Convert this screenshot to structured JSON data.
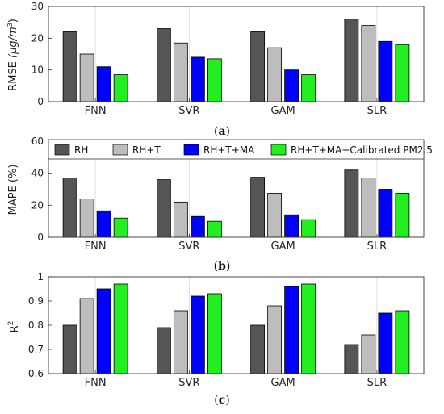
{
  "chart_data": [
    {
      "type": "bar",
      "panel_label": "a",
      "ylabel": "RMSE (μg/m³)",
      "ylabel_main": "RMSE",
      "ylabel_unit": "(μg/m",
      "ylabel_sup": "3",
      "ylabel_close": ")",
      "ylim": [
        0,
        30
      ],
      "yticks": [
        "0",
        "10",
        "20",
        "30"
      ],
      "ytick_values": [
        0,
        10,
        20,
        30
      ],
      "grid": "vertical",
      "categories": [
        "FNN",
        "SVR",
        "GAM",
        "SLR"
      ],
      "series": [
        {
          "name": "RH",
          "color": "#555555",
          "values": [
            22,
            23,
            22,
            26
          ]
        },
        {
          "name": "RH+T",
          "color": "#bdbdbd",
          "values": [
            15,
            18.5,
            17,
            24
          ]
        },
        {
          "name": "RH+T+MA",
          "color": "#0000ff",
          "values": [
            11,
            14,
            10,
            19
          ]
        },
        {
          "name": "RH+T+MA+Calibrated PM2.5",
          "color": "#22ee22",
          "values": [
            8.5,
            13.5,
            8.5,
            18
          ]
        }
      ]
    },
    {
      "type": "bar",
      "panel_label": "b",
      "ylabel": "MAPE (%)",
      "ylabel_main": "MAPE (%)",
      "ylim": [
        0,
        60
      ],
      "yticks": [
        "0",
        "20",
        "40",
        "60"
      ],
      "ytick_values": [
        0,
        20,
        40,
        60
      ],
      "grid": "vertical",
      "legend": "top",
      "categories": [
        "FNN",
        "SVR",
        "GAM",
        "SLR"
      ],
      "series": [
        {
          "name": "RH",
          "color": "#555555",
          "values": [
            37,
            36,
            37.5,
            42
          ]
        },
        {
          "name": "RH+T",
          "color": "#bdbdbd",
          "values": [
            24,
            22,
            27.5,
            37
          ]
        },
        {
          "name": "RH+T+MA",
          "color": "#0000ff",
          "values": [
            16.5,
            13,
            14,
            30
          ]
        },
        {
          "name": "RH+T+MA+Calibrated PM2.5",
          "color": "#22ee22",
          "values": [
            12,
            10,
            11,
            27.5
          ]
        }
      ]
    },
    {
      "type": "bar",
      "panel_label": "c",
      "ylabel": "R²",
      "ylabel_main": "R",
      "ylabel_sup": "2",
      "ylim": [
        0.6,
        1.0
      ],
      "yticks": [
        "0.6",
        "0.7",
        "0.8",
        "0.9",
        "1"
      ],
      "ytick_values": [
        0.6,
        0.7,
        0.8,
        0.9,
        1.0
      ],
      "grid": "vertical",
      "categories": [
        "FNN",
        "SVR",
        "GAM",
        "SLR"
      ],
      "series": [
        {
          "name": "RH",
          "color": "#555555",
          "values": [
            0.8,
            0.79,
            0.8,
            0.72
          ]
        },
        {
          "name": "RH+T",
          "color": "#bdbdbd",
          "values": [
            0.91,
            0.86,
            0.88,
            0.76
          ]
        },
        {
          "name": "RH+T+MA",
          "color": "#0000ff",
          "values": [
            0.95,
            0.92,
            0.96,
            0.85
          ]
        },
        {
          "name": "RH+T+MA+Calibrated PM2.5",
          "color": "#22ee22",
          "values": [
            0.97,
            0.93,
            0.97,
            0.86
          ]
        }
      ]
    }
  ]
}
